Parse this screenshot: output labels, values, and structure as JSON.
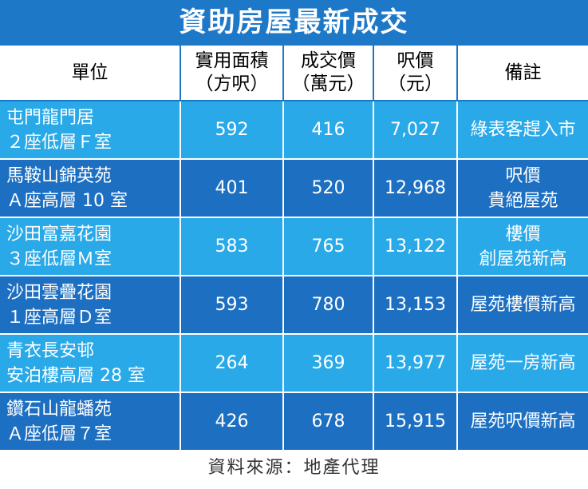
{
  "title": "資助房屋最新成交",
  "headers": {
    "unit": [
      "單位"
    ],
    "area": [
      "實用面積",
      "（方呎）"
    ],
    "price": [
      "成交價",
      "（萬元）"
    ],
    "psf": [
      "呎價",
      "（元）"
    ],
    "note": [
      "備註"
    ]
  },
  "rows": [
    {
      "unit": [
        "屯門龍門居",
        "２座低層Ｆ室"
      ],
      "area": "592",
      "price": "416",
      "psf": "7,027",
      "note": [
        "綠表客趕入市"
      ]
    },
    {
      "unit": [
        "馬鞍山錦英苑",
        "Ａ座高層 10 室"
      ],
      "area": "401",
      "price": "520",
      "psf": "12,968",
      "note": [
        "呎價",
        "貴絕屋苑"
      ]
    },
    {
      "unit": [
        "沙田富嘉花園",
        "３座低層Ｍ室"
      ],
      "area": "583",
      "price": "765",
      "psf": "13,122",
      "note": [
        "樓價",
        "創屋苑新高"
      ]
    },
    {
      "unit": [
        "沙田雲疊花園",
        "１座高層Ｄ室"
      ],
      "area": "593",
      "price": "780",
      "psf": "13,153",
      "note": [
        "屋苑樓價新高"
      ]
    },
    {
      "unit": [
        "青衣長安邨",
        "安泊樓高層 28 室"
      ],
      "area": "264",
      "price": "369",
      "psf": "13,977",
      "note": [
        "屋苑一房新高"
      ]
    },
    {
      "unit": [
        "鑽石山龍蟠苑",
        "Ａ座低層７室"
      ],
      "area": "426",
      "price": "678",
      "psf": "15,915",
      "note": [
        "屋苑呎價新高"
      ]
    }
  ],
  "source": "資料來源：地產代理",
  "colors": {
    "title_bg": "#1e78c8",
    "row_light": "#29a9e8",
    "row_dark": "#1d6fc2"
  }
}
